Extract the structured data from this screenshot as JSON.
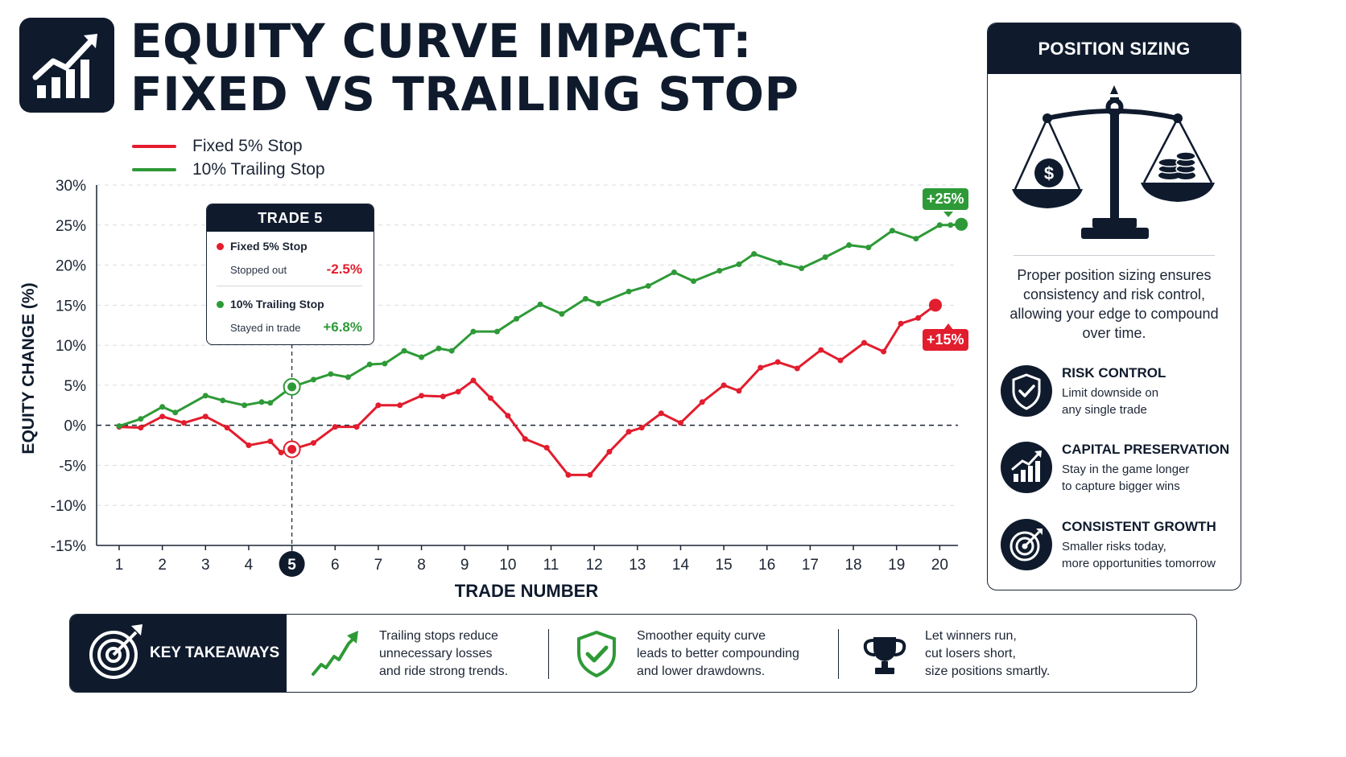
{
  "header": {
    "title_line1": "EQUITY CURVE IMPACT:",
    "title_line2": "FIXED VS TRAILING STOP",
    "logo_icon": "bar-chart-trend-icon"
  },
  "colors": {
    "navy": "#0f1b2d",
    "red": "#e21d2e",
    "green": "#2e9a37",
    "grid": "#d9dce1"
  },
  "chart_data": {
    "type": "line",
    "xlabel": "TRADE NUMBER",
    "ylabel": "EQUITY CHANGE (%)",
    "xlim": [
      1,
      20
    ],
    "ylim": [
      -15,
      30
    ],
    "x_ticks": [
      "1",
      "2",
      "3",
      "4",
      "5",
      "6",
      "7",
      "8",
      "9",
      "10",
      "11",
      "12",
      "13",
      "14",
      "15",
      "16",
      "17",
      "18",
      "19",
      "20"
    ],
    "y_ticks": [
      "30%",
      "25%",
      "20%",
      "15%",
      "10%",
      "5%",
      "0%",
      "-5%",
      "-10%",
      "-15%"
    ],
    "y_tick_values": [
      30,
      25,
      20,
      15,
      10,
      5,
      0,
      -5,
      -10,
      -15
    ],
    "highlight_x": 5,
    "grid": true,
    "legend_position": "top-left",
    "series": [
      {
        "name": "Fixed 5% Stop",
        "color": "#e21d2e",
        "end_label": "+15%",
        "points": [
          [
            1,
            -0.2
          ],
          [
            1.5,
            -0.3
          ],
          [
            2,
            1.1
          ],
          [
            2.5,
            0.3
          ],
          [
            3,
            1.1
          ],
          [
            3.5,
            -0.3
          ],
          [
            4,
            -2.5
          ],
          [
            4.5,
            -2.0
          ],
          [
            4.75,
            -3.4
          ],
          [
            5,
            -3.0
          ],
          [
            5.5,
            -2.2
          ],
          [
            6,
            -0.2
          ],
          [
            6.5,
            -0.2
          ],
          [
            7,
            2.5
          ],
          [
            7.5,
            2.5
          ],
          [
            8,
            3.7
          ],
          [
            8.5,
            3.6
          ],
          [
            8.85,
            4.2
          ],
          [
            9.2,
            5.6
          ],
          [
            9.6,
            3.4
          ],
          [
            10,
            1.2
          ],
          [
            10.4,
            -1.7
          ],
          [
            10.9,
            -2.8
          ],
          [
            11.4,
            -6.2
          ],
          [
            11.9,
            -6.2
          ],
          [
            12.35,
            -3.3
          ],
          [
            12.8,
            -0.8
          ],
          [
            13.1,
            -0.3
          ],
          [
            13.55,
            1.5
          ],
          [
            14,
            0.3
          ],
          [
            14.5,
            2.9
          ],
          [
            15,
            5.0
          ],
          [
            15.35,
            4.3
          ],
          [
            15.85,
            7.2
          ],
          [
            16.25,
            7.9
          ],
          [
            16.7,
            7.1
          ],
          [
            17.25,
            9.4
          ],
          [
            17.7,
            8.1
          ],
          [
            18.25,
            10.3
          ],
          [
            18.7,
            9.2
          ],
          [
            19.1,
            12.7
          ],
          [
            19.5,
            13.4
          ],
          [
            19.9,
            15.0
          ]
        ]
      },
      {
        "name": "10% Trailing Stop",
        "color": "#2e9a37",
        "end_label": "+25%",
        "points": [
          [
            1,
            -0.1
          ],
          [
            1.5,
            0.8
          ],
          [
            2,
            2.3
          ],
          [
            2.3,
            1.6
          ],
          [
            3,
            3.7
          ],
          [
            3.4,
            3.1
          ],
          [
            3.9,
            2.5
          ],
          [
            4.3,
            2.9
          ],
          [
            4.5,
            2.8
          ],
          [
            5,
            4.8
          ],
          [
            5.5,
            5.7
          ],
          [
            5.9,
            6.4
          ],
          [
            6.3,
            6.0
          ],
          [
            6.8,
            7.6
          ],
          [
            7.15,
            7.7
          ],
          [
            7.6,
            9.3
          ],
          [
            8,
            8.5
          ],
          [
            8.4,
            9.6
          ],
          [
            8.7,
            9.3
          ],
          [
            9.2,
            11.7
          ],
          [
            9.75,
            11.7
          ],
          [
            10.2,
            13.3
          ],
          [
            10.75,
            15.1
          ],
          [
            11.25,
            13.9
          ],
          [
            11.8,
            15.8
          ],
          [
            12.1,
            15.2
          ],
          [
            12.8,
            16.7
          ],
          [
            13.25,
            17.4
          ],
          [
            13.85,
            19.1
          ],
          [
            14.3,
            18.0
          ],
          [
            14.9,
            19.3
          ],
          [
            15.35,
            20.1
          ],
          [
            15.7,
            21.4
          ],
          [
            16.3,
            20.3
          ],
          [
            16.8,
            19.6
          ],
          [
            17.35,
            21.0
          ],
          [
            17.9,
            22.5
          ],
          [
            18.35,
            22.2
          ],
          [
            18.9,
            24.3
          ],
          [
            19.45,
            23.3
          ],
          [
            20,
            25.0
          ],
          [
            20.25,
            25.0
          ],
          [
            20.5,
            25.1
          ]
        ]
      }
    ]
  },
  "legend": [
    {
      "label": "Fixed 5% Stop",
      "color": "#e21d2e"
    },
    {
      "label": "10% Trailing Stop",
      "color": "#2e9a37"
    }
  ],
  "tooltip": {
    "title": "TRADE 5",
    "row1_name": "Fixed 5% Stop",
    "row1_status": "Stopped out",
    "row1_value": "-2.5%",
    "row2_name": "10% Trailing Stop",
    "row2_status": "Stayed in trade",
    "row2_value": "+6.8%"
  },
  "panel": {
    "title": "POSITION SIZING",
    "illustration_icon": "balance-scale-icon",
    "description": "Proper position sizing ensures consistency and risk control, allowing your edge to compound over time.",
    "features": [
      {
        "icon": "shield-check-icon",
        "title": "RISK CONTROL",
        "line1": "Limit downside on",
        "line2": "any single trade"
      },
      {
        "icon": "growth-chart-icon",
        "title": "CAPITAL PRESERVATION",
        "line1": "Stay in the game longer",
        "line2": "to capture bigger wins"
      },
      {
        "icon": "target-icon",
        "title": "CONSISTENT GROWTH",
        "line1": "Smaller risks today,",
        "line2": "more opportunities tomorrow"
      }
    ]
  },
  "takeaways": {
    "title": "KEY TAKEAWAYS",
    "header_icon": "target-arrow-icon",
    "items": [
      {
        "icon": "trend-arrow-icon",
        "line1": "Trailing stops reduce",
        "line2": "unnecessary losses",
        "line3": "and ride strong trends."
      },
      {
        "icon": "shield-check-icon",
        "line1": "Smoother equity curve",
        "line2": "leads to better compounding",
        "line3": "and lower drawdowns."
      },
      {
        "icon": "trophy-icon",
        "line1": "Let winners run,",
        "line2": "cut losers short,",
        "line3": "size positions smartly."
      }
    ]
  }
}
